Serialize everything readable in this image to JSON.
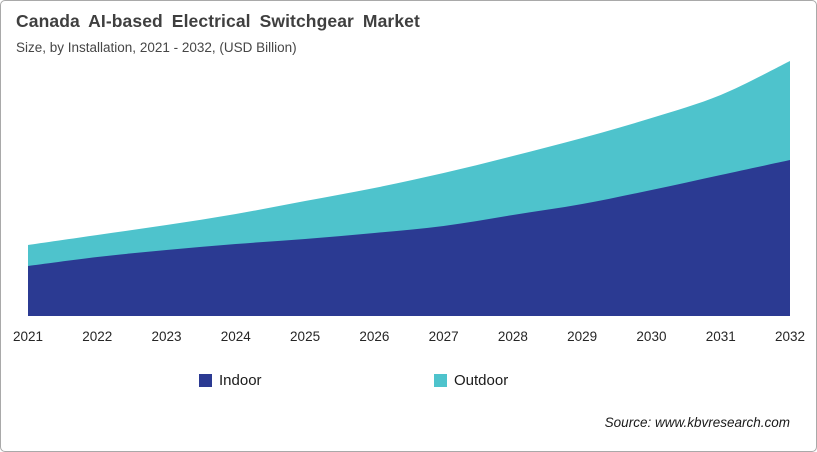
{
  "header": {
    "title": "Canada AI-based Electrical Switchgear Market",
    "subtitle": "Size, by Installation, 2021 - 2032, (USD Billion)"
  },
  "legend": {
    "items": [
      {
        "label": "Indoor",
        "color": "#2b3a92"
      },
      {
        "label": "Outdoor",
        "color": "#4ec3cc"
      }
    ]
  },
  "footer": {
    "source": "Source: www.kbvresearch.com"
  },
  "chart_data": {
    "type": "area",
    "stacked": true,
    "title": "Canada AI-based Electrical Switchgear Market",
    "subtitle": "Size, by Installation, 2021 - 2032, (USD Billion)",
    "categories": [
      "2021",
      "2022",
      "2023",
      "2024",
      "2025",
      "2026",
      "2027",
      "2028",
      "2029",
      "2030",
      "2031",
      "2032"
    ],
    "series": [
      {
        "name": "Indoor",
        "color": "#2b3a92",
        "values": [
          50,
          59,
          66,
          72,
          77,
          83,
          90,
          101,
          112,
          126,
          141,
          156
        ]
      },
      {
        "name": "Outdoor",
        "color": "#4ec3cc",
        "values": [
          21,
          22,
          25,
          30,
          38,
          45,
          53,
          59,
          66,
          72,
          80,
          99
        ]
      }
    ],
    "xlabel": "",
    "ylabel": "",
    "y_axis_visible": false,
    "gridlines": false,
    "legend_position": "bottom",
    "values_note": "No y-axis is shown in the source image; series values are relative magnitudes estimated from rendered pixel heights (stacked)."
  }
}
